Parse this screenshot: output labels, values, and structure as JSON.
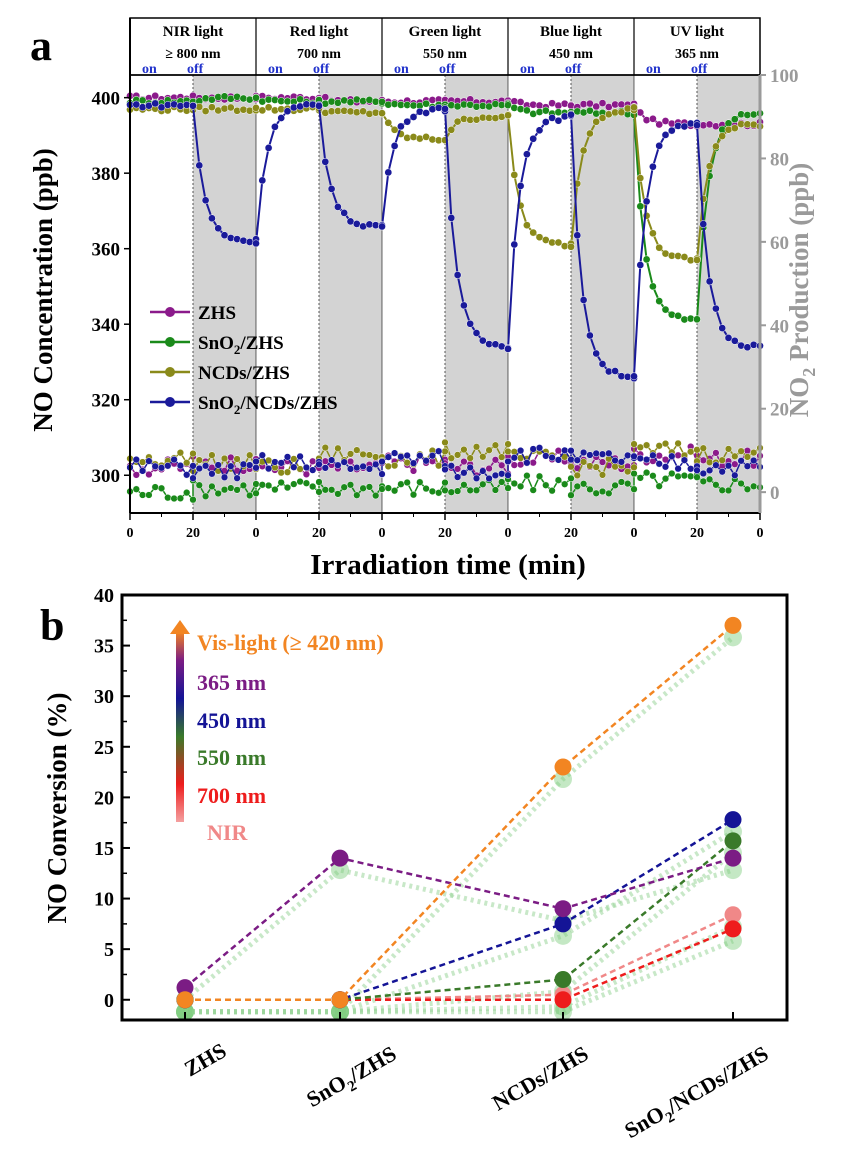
{
  "chart_data": [
    {
      "panel_label": "a",
      "type": "scatter",
      "xlabel": "Irradiation time (min)",
      "ylabel": "NO Concentration (ppb)",
      "y2label_pre": "NO",
      "y2label_sub": "2",
      "y2label_post": " Production (ppb)",
      "ylim": [
        290,
        406
      ],
      "y2lim": [
        -5,
        100
      ],
      "yticks": [
        300,
        320,
        340,
        360,
        380,
        400
      ],
      "y2ticks": [
        0,
        20,
        40,
        60,
        80,
        100
      ],
      "x_tick_labels": [
        "0",
        "20",
        "0",
        "20",
        "0",
        "20",
        "0",
        "20",
        "0",
        "20",
        "0"
      ],
      "segments": [
        {
          "line1": "NIR light",
          "line2": "≥  800 nm"
        },
        {
          "line1": "Red light",
          "line2": "700 nm"
        },
        {
          "line1": "Green light",
          "line2": "550 nm"
        },
        {
          "line1": "Blue light",
          "line2": "450 nm"
        },
        {
          "line1": "UV light",
          "line2": "365 nm"
        }
      ],
      "on_label": "on",
      "off_label": "off",
      "legend_position": "left-center",
      "series": [
        {
          "name": "ZHS",
          "color": "#8b1a8b",
          "no_levels": [
            400,
            400,
            400,
            399,
            399,
            399,
            398,
            398,
            393,
            393
          ],
          "no2_levels": [
            6,
            7,
            6,
            6,
            7,
            6,
            8,
            7,
            9,
            8
          ]
        },
        {
          "name": "SnO2/ZHS",
          "name_pre": "SnO",
          "name_sub": "2",
          "name_post": "/ZHS",
          "color": "#1a8a1a",
          "no_levels": [
            399,
            400,
            399,
            399,
            398,
            398,
            396,
            396,
            341,
            396
          ],
          "no2_levels": [
            0,
            1,
            1,
            1,
            1,
            1,
            2,
            1,
            3,
            2
          ]
        },
        {
          "name": "NCDs/ZHS",
          "color": "#8a8a1a",
          "no_levels": [
            397,
            397,
            397,
            396,
            389,
            395,
            361,
            397,
            357,
            393
          ],
          "no2_levels": [
            8,
            7,
            6,
            9,
            8,
            10,
            8,
            6,
            10,
            9
          ]
        },
        {
          "name": "SnO2/NCDs/ZHS",
          "name_pre": "SnO",
          "name_sub": "2",
          "name_post": "/NCDs/ZHS",
          "color": "#1a1a9a",
          "no_levels": [
            398,
            362,
            398,
            366,
            397,
            334,
            395,
            326,
            393,
            334
          ],
          "no2_levels": [
            6,
            5,
            7,
            6,
            8,
            5,
            9,
            8,
            7,
            6
          ]
        }
      ]
    },
    {
      "panel_label": "b",
      "type": "line",
      "categories": [
        "ZHS",
        "SnO2/ZHS",
        "NCDs/ZHS",
        "SnO2/NCDs/ZHS"
      ],
      "category_labels": [
        {
          "pre": "ZHS",
          "sub": "",
          "post": ""
        },
        {
          "pre": "SnO",
          "sub": "2",
          "post": "/ZHS"
        },
        {
          "pre": "NCDs/ZHS",
          "sub": "",
          "post": ""
        },
        {
          "pre": "SnO",
          "sub": "2",
          "post": "/NCDs/ZHS"
        }
      ],
      "ylabel": "NO Conversion (%)",
      "ylim": [
        -2,
        40
      ],
      "yticks": [
        0,
        5,
        10,
        15,
        20,
        25,
        30,
        35,
        40
      ],
      "legend_position": "top-left",
      "series": [
        {
          "name": "Vis-light (≥ 420 nm)",
          "color": "#f28522",
          "values": [
            0,
            0,
            23,
            37
          ]
        },
        {
          "name": "365 nm",
          "color": "#7b1c84",
          "values": [
            1.2,
            14,
            9,
            14
          ]
        },
        {
          "name": "450 nm",
          "color": "#141496",
          "values": [
            0,
            0,
            7.5,
            17.8
          ]
        },
        {
          "name": "550 nm",
          "color": "#3a7a2a",
          "values": [
            0,
            0,
            2,
            15.7
          ]
        },
        {
          "name": "700 nm",
          "color": "#ee1c1c",
          "values": [
            0,
            0,
            0,
            7
          ]
        },
        {
          "name": "NIR",
          "color": "#f08888",
          "values": [
            0,
            0,
            0.5,
            8.4
          ]
        }
      ]
    }
  ]
}
